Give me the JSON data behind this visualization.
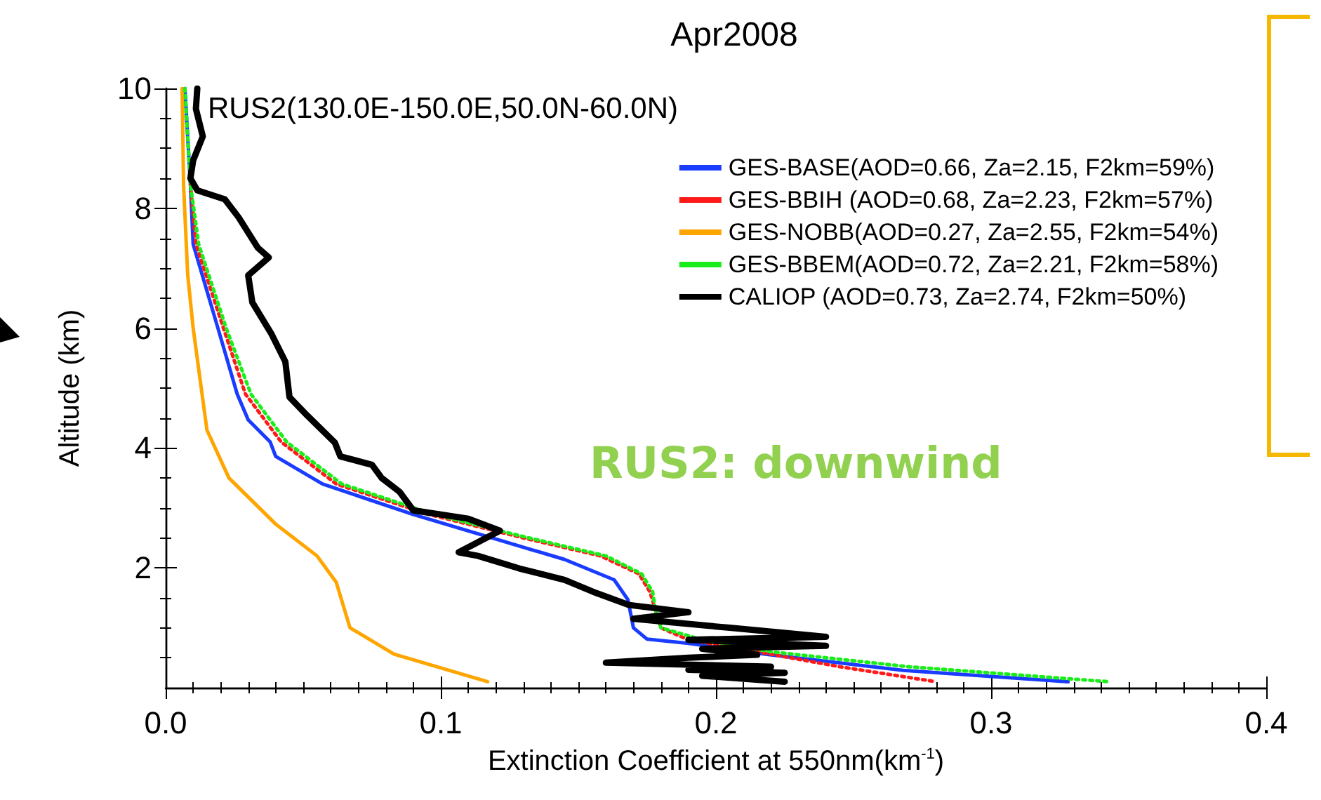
{
  "chart_data": {
    "type": "line",
    "title": "Apr2008",
    "xlabel": "Extinction Coefficient at 550nm(km$^{-1}$)",
    "ylabel": "Altitude (km)",
    "xlim": [
      0,
      0.4
    ],
    "xticks": [
      {
        "value": 0,
        "label": "0.0"
      },
      0.1,
      0.2,
      0.3,
      0.4
    ],
    "ylim": [
      0,
      10
    ],
    "yticks": [
      2,
      4,
      6,
      8,
      10
    ],
    "grid": false,
    "legend": "top right",
    "marker": "none",
    "annotations": [
      "RUS2(130.0E-150.0E,50.0N-60.0N)",
      "RUS2: downwind"
    ],
    "series": [
      {
        "name": "GES-BASE(AOD=0.66, Za=2.15, F2km=59%)",
        "color": "#1a3cff",
        "line_style": "solid",
        "x": [
          0.007,
          0.009,
          0.01,
          0.019,
          0.026,
          0.03,
          0.038,
          0.04,
          0.057,
          0.09,
          0.12,
          0.145,
          0.163,
          0.168,
          0.17,
          0.175,
          0.19,
          0.218,
          0.268,
          0.328
        ],
        "values": [
          10,
          8.4,
          7.4,
          6.0,
          4.9,
          4.47,
          4.1,
          3.86,
          3.4,
          2.89,
          2.48,
          2.14,
          1.8,
          1.47,
          1.0,
          0.81,
          0.74,
          0.56,
          0.29,
          0.1
        ]
      },
      {
        "name": "GES-BBIH (AOD=0.68, Za=2.23, F2km=57%)",
        "color": "#ff1a1a",
        "line_style": "dotted",
        "x": [
          0.009,
          0.011,
          0.021,
          0.029,
          0.042,
          0.062,
          0.095,
          0.13,
          0.158,
          0.172,
          0.176,
          0.178,
          0.18,
          0.19,
          0.215,
          0.245,
          0.28
        ],
        "values": [
          8.4,
          7.4,
          6.0,
          4.9,
          4.1,
          3.4,
          2.9,
          2.5,
          2.2,
          1.9,
          1.6,
          1.3,
          1.0,
          0.8,
          0.6,
          0.35,
          0.1
        ]
      },
      {
        "name": "GES-NOBB(AOD=0.27, Za=2.55, F2km=54%)",
        "color": "#ffa500",
        "line_style": "solid",
        "x": [
          0.006,
          0.0065,
          0.008,
          0.01,
          0.015,
          0.023,
          0.04,
          0.055,
          0.062,
          0.067,
          0.083,
          0.117
        ],
        "values": [
          10,
          8.4,
          6.9,
          6.0,
          4.3,
          3.5,
          2.73,
          2.2,
          1.76,
          1.0,
          0.56,
          0.1
        ]
      },
      {
        "name": "GES-BBEM(AOD=0.72, Za=2.21, F2km=58%)",
        "color": "#1aee1a",
        "line_style": "dotted",
        "x": [
          0.007,
          0.009,
          0.012,
          0.022,
          0.031,
          0.044,
          0.064,
          0.097,
          0.132,
          0.16,
          0.173,
          0.177,
          0.178,
          0.18,
          0.195,
          0.22,
          0.27,
          0.343
        ],
        "values": [
          10,
          8.4,
          7.4,
          6.0,
          4.9,
          4.1,
          3.4,
          2.9,
          2.5,
          2.2,
          1.9,
          1.6,
          1.3,
          1.0,
          0.8,
          0.6,
          0.35,
          0.1
        ]
      },
      {
        "name": "CALIOP (AOD=0.73, Za=2.74, F2km=50%)",
        "color": "#000000",
        "line_style": "solid",
        "x": [
          0.0115,
          0.011,
          0.0135,
          0.01,
          0.009,
          0.0115,
          0.0215,
          0.0265,
          0.0335,
          0.0375,
          0.03,
          0.0315,
          0.0385,
          0.0435,
          0.045,
          0.0515,
          0.0615,
          0.0635,
          0.075,
          0.0785,
          0.085,
          0.09,
          0.11,
          0.1215,
          0.1065,
          0.1135,
          0.1285,
          0.145,
          0.1565,
          0.1685,
          0.19,
          0.17,
          0.205,
          0.24,
          0.19,
          0.24,
          0.195,
          0.215,
          0.19,
          0.16,
          0.22,
          0.19,
          0.225,
          0.195,
          0.225
        ],
        "values": [
          10,
          9.66,
          9.2,
          8.8,
          8.5,
          8.3,
          8.15,
          7.85,
          7.34,
          7.18,
          6.88,
          6.43,
          5.9,
          5.44,
          4.85,
          4.54,
          4.09,
          3.86,
          3.72,
          3.5,
          3.27,
          2.96,
          2.82,
          2.62,
          2.26,
          2.2,
          1.99,
          1.8,
          1.58,
          1.38,
          1.26,
          1.15,
          1.0,
          0.85,
          0.8,
          0.7,
          0.65,
          0.55,
          0.5,
          0.42,
          0.35,
          0.3,
          0.25,
          0.2,
          0.1
        ]
      }
    ]
  }
}
